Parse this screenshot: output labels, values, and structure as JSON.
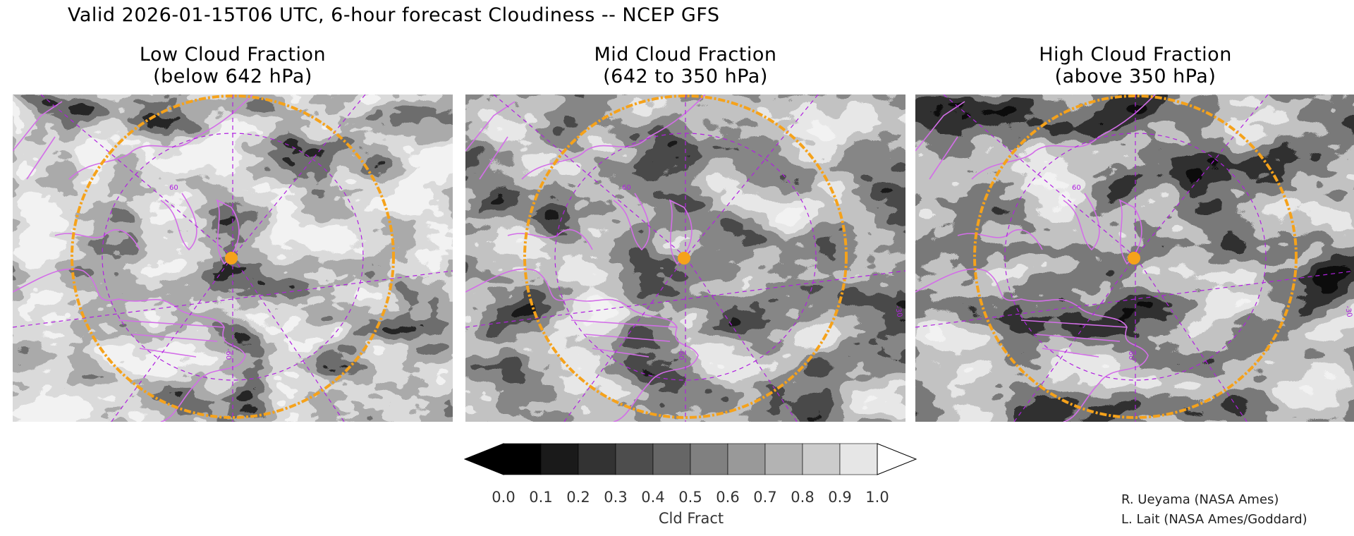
{
  "header": {
    "title": "Valid 2026-01-15T06 UTC, 6-hour forecast Cloudiness -- NCEP GFS"
  },
  "panels": [
    {
      "id": "low",
      "title_line1": "Low Cloud Fraction",
      "title_line2": "(below 642 hPa)"
    },
    {
      "id": "mid",
      "title_line1": "Mid Cloud Fraction",
      "title_line2": "(642 to 350 hPa)"
    },
    {
      "id": "high",
      "title_line1": "High Cloud Fraction",
      "title_line2": "(above 350 hPa)"
    }
  ],
  "map_labels": {
    "lat60": "60",
    "lon60": "-60",
    "lon30": "-30"
  },
  "colorbar": {
    "label": "Cld Fract",
    "ticks": [
      "0.0",
      "0.1",
      "0.2",
      "0.3",
      "0.4",
      "0.5",
      "0.6",
      "0.7",
      "0.8",
      "0.9",
      "1.0"
    ],
    "colors": [
      "#000000",
      "#1a1a1a",
      "#333333",
      "#4d4d4d",
      "#666666",
      "#808080",
      "#999999",
      "#b3b3b3",
      "#cccccc",
      "#e6e6e6",
      "#ffffff"
    ]
  },
  "credits": {
    "line1": "R. Ueyama (NASA Ames)",
    "line2": "L. Lait (NASA Ames/Goddard)"
  },
  "style": {
    "coast_color": "#d36ee8",
    "grid_color": "#b020e0",
    "ring_color": "#f5a21b",
    "marker_color": "#f5a21b"
  }
}
